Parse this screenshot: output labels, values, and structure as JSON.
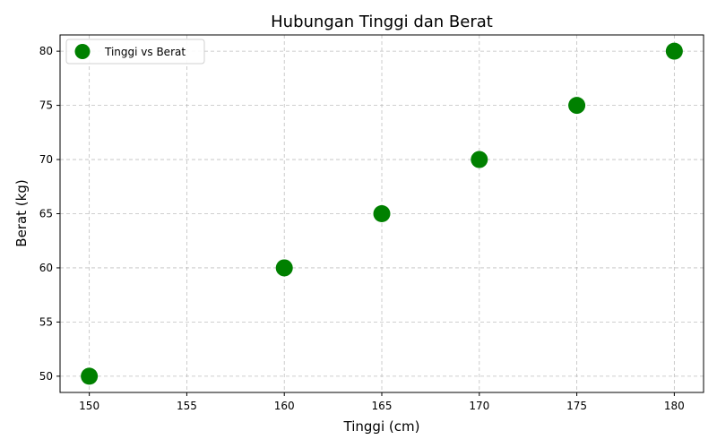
{
  "chart_data": {
    "type": "scatter",
    "title": "Hubungan Tinggi dan Berat",
    "xlabel": "Tinggi (cm)",
    "ylabel": "Berat (kg)",
    "xlim": [
      148.5,
      181.5
    ],
    "ylim": [
      48.5,
      81.5
    ],
    "x_ticks": [
      150,
      155,
      160,
      165,
      170,
      175,
      180
    ],
    "y_ticks": [
      50,
      55,
      60,
      65,
      70,
      75,
      80
    ],
    "grid": true,
    "legend_position": "top-left",
    "series": [
      {
        "name": "Tinggi vs Berat",
        "color": "#008000",
        "x": [
          150,
          160,
          165,
          170,
          175,
          180
        ],
        "y": [
          50,
          60,
          65,
          70,
          75,
          80
        ]
      }
    ]
  }
}
